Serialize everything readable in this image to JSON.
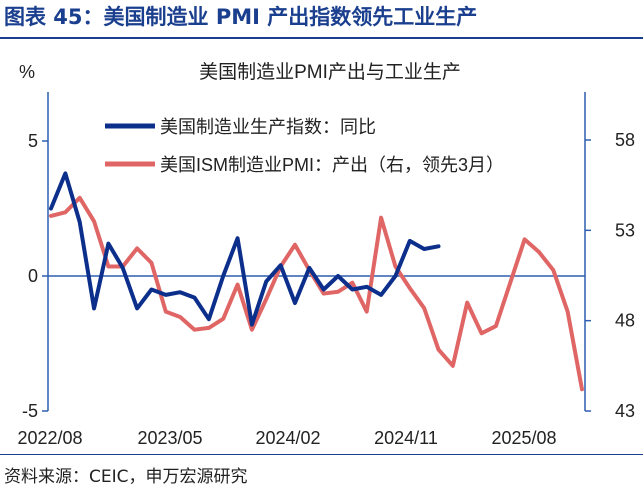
{
  "figure_title": "图表 45：美国制造业 PMI 产出指数领先工业生产",
  "source": "资料来源：CEIC，申万宏源研究",
  "chart_data": {
    "type": "line",
    "title": "美国制造业PMI产出与工业生产",
    "left_axis": {
      "unit": "%",
      "ylim": [
        -5,
        10
      ],
      "ticks": [
        5,
        0,
        -5
      ],
      "tick_labels": [
        "5",
        "0",
        "-5"
      ]
    },
    "right_axis": {
      "ylim": [
        43,
        63
      ],
      "ticks": [
        58,
        53,
        48,
        43
      ],
      "tick_labels": [
        "58",
        "53",
        "48",
        "43"
      ]
    },
    "x_tick_labels": [
      "2022/08",
      "2023/05",
      "2024/02",
      "2024/11",
      "2025/08"
    ],
    "x_range": [
      0,
      36
    ],
    "series": [
      {
        "name": "美国制造业生产指数：同比",
        "color": "#0d2f8c",
        "axis": "left",
        "x": [
          0,
          1,
          2,
          3,
          4,
          5,
          6,
          7,
          8,
          9,
          10,
          11,
          12,
          13,
          14,
          15,
          16,
          17,
          18,
          19,
          20,
          21,
          22,
          23,
          24,
          25,
          26,
          27,
          28,
          29
        ],
        "values": [
          2.5,
          3.8,
          2.0,
          -1.2,
          1.2,
          0.3,
          -1.2,
          -0.5,
          -0.7,
          -0.6,
          -0.8,
          -1.6,
          0.0,
          1.4,
          -1.8,
          -0.2,
          0.4,
          -1.0,
          0.3,
          -0.5,
          0.0,
          -0.5,
          -0.4,
          -0.7,
          0.0,
          1.3,
          1.0,
          1.1,
          null,
          null
        ]
      },
      {
        "name": "美国ISM制造业PMI：产出（右，领先3月）",
        "color": "#e06666",
        "axis": "right",
        "x": [
          0,
          1,
          2,
          3,
          4,
          5,
          6,
          7,
          8,
          9,
          10,
          11,
          12,
          13,
          14,
          15,
          16,
          17,
          18,
          19,
          20,
          21,
          22,
          23,
          24,
          25,
          26,
          27,
          28,
          29,
          30,
          31,
          32,
          33,
          34
        ],
        "values": [
          53.8,
          54.0,
          54.8,
          53.5,
          51.0,
          51.0,
          52.0,
          51.2,
          48.5,
          48.2,
          47.5,
          47.6,
          48.1,
          50.0,
          47.5,
          49.2,
          51.0,
          52.2,
          50.8,
          49.5,
          49.6,
          50.1,
          48.5,
          53.7,
          51.0,
          49.8,
          48.7,
          46.4,
          45.5,
          49.0,
          47.3,
          47.7,
          50.1,
          52.5,
          51.8
        ]
      }
    ],
    "extra_tail": [
      [
        35,
        50.8
      ],
      [
        36,
        48.5
      ],
      [
        37,
        44.2
      ]
    ]
  }
}
